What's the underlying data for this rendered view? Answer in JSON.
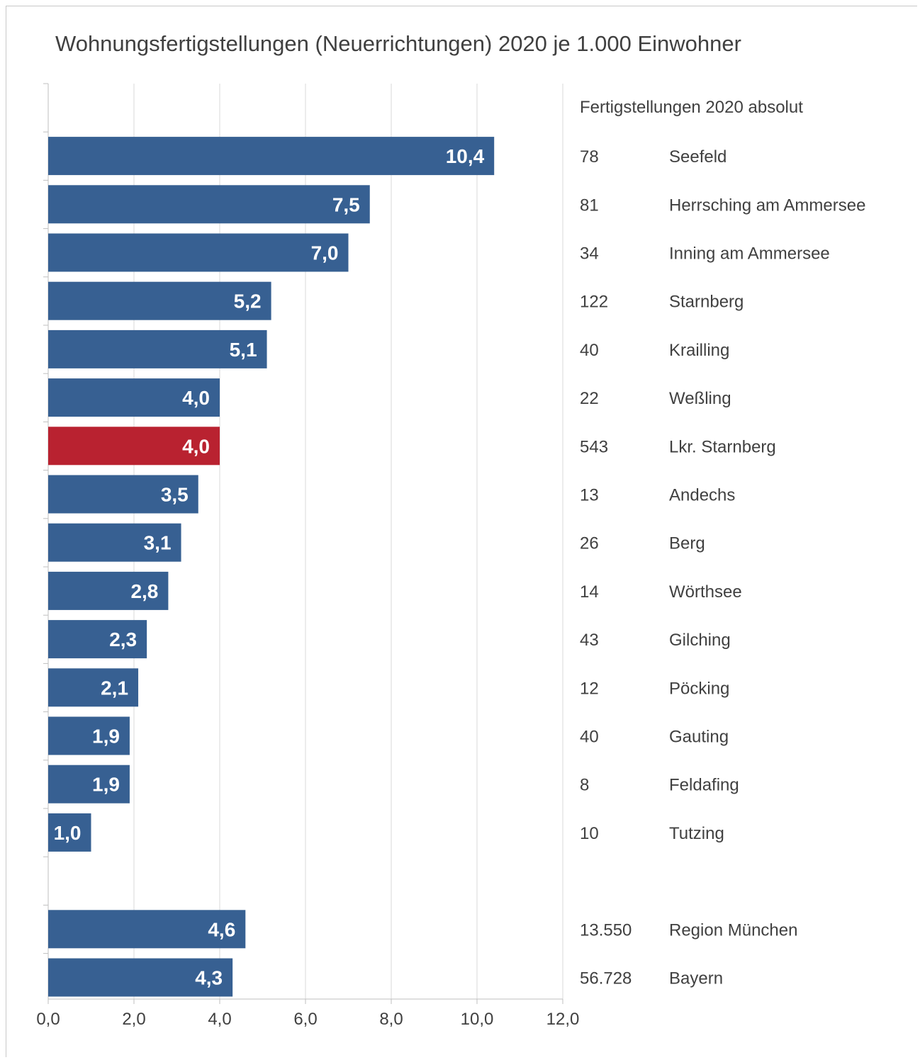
{
  "chart_data": {
    "type": "bar",
    "orientation": "horizontal",
    "title": "Wohnungsfertigstellungen (Neuerrichtungen) 2020 je 1.000 Einwohner",
    "side_header": "Fertigstellungen 2020 absolut",
    "xlim": [
      0,
      12
    ],
    "x_ticks": [
      "0,0",
      "2,0",
      "4,0",
      "6,0",
      "8,0",
      "10,0",
      "12,0"
    ],
    "grid": "vertical",
    "colors": {
      "default": "#376092",
      "highlight": "#b92230"
    },
    "categories": [
      {
        "name": "Seefeld",
        "value": 10.4,
        "label": "10,4",
        "absolute": "78",
        "highlight": false
      },
      {
        "name": "Herrsching am Ammersee",
        "value": 7.5,
        "label": "7,5",
        "absolute": "81",
        "highlight": false
      },
      {
        "name": "Inning am Ammersee",
        "value": 7.0,
        "label": "7,0",
        "absolute": "34",
        "highlight": false
      },
      {
        "name": "Starnberg",
        "value": 5.2,
        "label": "5,2",
        "absolute": "122",
        "highlight": false
      },
      {
        "name": "Krailling",
        "value": 5.1,
        "label": "5,1",
        "absolute": "40",
        "highlight": false
      },
      {
        "name": "Weßling",
        "value": 4.0,
        "label": "4,0",
        "absolute": "22",
        "highlight": false
      },
      {
        "name": "Lkr. Starnberg",
        "value": 4.0,
        "label": "4,0",
        "absolute": "543",
        "highlight": true
      },
      {
        "name": "Andechs",
        "value": 3.5,
        "label": "3,5",
        "absolute": "13",
        "highlight": false
      },
      {
        "name": "Berg",
        "value": 3.1,
        "label": "3,1",
        "absolute": "26",
        "highlight": false
      },
      {
        "name": "Wörthsee",
        "value": 2.8,
        "label": "2,8",
        "absolute": "14",
        "highlight": false
      },
      {
        "name": "Gilching",
        "value": 2.3,
        "label": "2,3",
        "absolute": "43",
        "highlight": false
      },
      {
        "name": "Pöcking",
        "value": 2.1,
        "label": "2,1",
        "absolute": "12",
        "highlight": false
      },
      {
        "name": "Gauting",
        "value": 1.9,
        "label": "1,9",
        "absolute": "40",
        "highlight": false
      },
      {
        "name": "Feldafing",
        "value": 1.9,
        "label": "1,9",
        "absolute": "8",
        "highlight": false
      },
      {
        "name": "Tutzing",
        "value": 1.0,
        "label": "1,0",
        "absolute": "10",
        "highlight": false
      },
      {
        "name": "",
        "value": null,
        "label": "",
        "absolute": "",
        "highlight": false
      },
      {
        "name": "Region München",
        "value": 4.6,
        "label": "4,6",
        "absolute": "13.550",
        "highlight": false
      },
      {
        "name": "Bayern",
        "value": 4.3,
        "label": "4,3",
        "absolute": "56.728",
        "highlight": false
      }
    ]
  }
}
